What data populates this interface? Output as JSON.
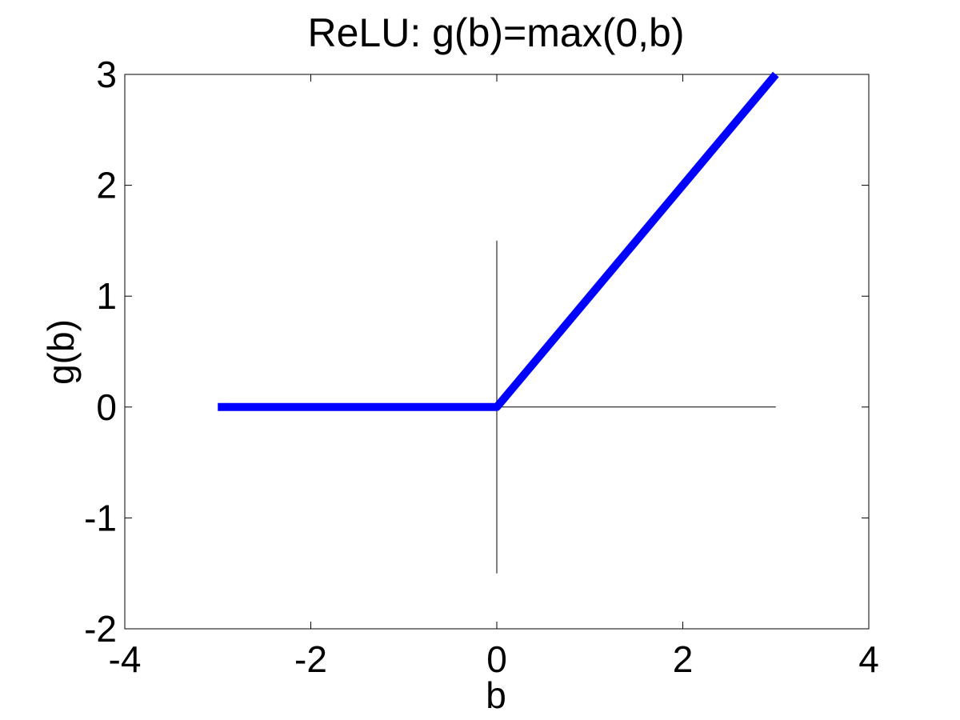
{
  "chart_data": {
    "type": "line",
    "title": "ReLU: g(b)=max(0,b)",
    "xlabel": "b",
    "ylabel": "g(b)",
    "xlim": [
      -4,
      4
    ],
    "ylim": [
      -2,
      3
    ],
    "xticks": [
      -4,
      -2,
      0,
      2,
      4
    ],
    "yticks": [
      -2,
      -1,
      0,
      1,
      2,
      3
    ],
    "xtick_labels": [
      "-4",
      "-2",
      "0",
      "2",
      "4"
    ],
    "ytick_labels": [
      "-2",
      "-1",
      "0",
      "1",
      "2",
      "3"
    ],
    "grid": false,
    "legend": false,
    "series": [
      {
        "color": "#0000ff",
        "x": [
          -3,
          0,
          3
        ],
        "y": [
          0,
          0,
          3
        ]
      }
    ],
    "reference_lines": [
      {
        "orientation": "horizontal",
        "y": 0,
        "x_range": [
          0,
          3
        ],
        "color": "#000000"
      },
      {
        "orientation": "vertical",
        "x": 0,
        "y_range": [
          -1.5,
          1.5
        ],
        "color": "#000000"
      }
    ]
  }
}
